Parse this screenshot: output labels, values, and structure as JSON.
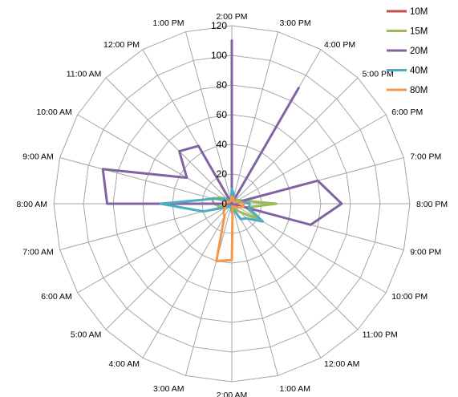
{
  "chart_data": {
    "type": "radar",
    "title": "",
    "categories": [
      "2:00 PM",
      "3:00 PM",
      "4:00 PM",
      "5:00 PM",
      "6:00 PM",
      "7:00 PM",
      "8:00 PM",
      "9:00 PM",
      "10:00 PM",
      "11:00 PM",
      "12:00 AM",
      "1:00 AM",
      "2:00 AM",
      "3:00 AM",
      "4:00 AM",
      "5:00 AM",
      "6:00 AM",
      "7:00 AM",
      "8:00 AM",
      "9:00 AM",
      "10:00 AM",
      "11:00 AM",
      "12:00 PM",
      "1:00 PM"
    ],
    "radial_axis": {
      "min": 0,
      "max": 120,
      "step": 20,
      "ticks": [
        "0",
        "20",
        "40",
        "60",
        "80",
        "100",
        "120"
      ]
    },
    "grid": true,
    "legend_position": "top-right",
    "series": [
      {
        "name": "10M",
        "color": "#c0504d",
        "values": [
          2,
          1,
          1,
          1,
          1,
          1,
          2,
          1,
          1,
          1,
          1,
          1,
          2,
          1,
          1,
          1,
          1,
          1,
          2,
          1,
          1,
          1,
          1,
          1
        ]
      },
      {
        "name": "15M",
        "color": "#9bbb59",
        "values": [
          5,
          2,
          2,
          3,
          5,
          8,
          30,
          10,
          22,
          8,
          4,
          2,
          3,
          2,
          1,
          2,
          3,
          8,
          12,
          14,
          8,
          5,
          3,
          2
        ]
      },
      {
        "name": "20M",
        "color": "#8064a2",
        "values": [
          110,
          0,
          90,
          0,
          0,
          60,
          74,
          55,
          0,
          0,
          0,
          0,
          0,
          0,
          0,
          0,
          0,
          0,
          84,
          90,
          35,
          50,
          45,
          0
        ]
      },
      {
        "name": "40M",
        "color": "#4bacc6",
        "values": [
          10,
          6,
          3,
          2,
          2,
          6,
          12,
          12,
          24,
          14,
          12,
          4,
          6,
          2,
          2,
          3,
          5,
          20,
          48,
          13,
          6,
          3,
          3,
          2
        ]
      },
      {
        "name": "80M",
        "color": "#f79646",
        "values": [
          5,
          4,
          2,
          2,
          2,
          5,
          8,
          8,
          5,
          3,
          2,
          2,
          38,
          40,
          10,
          8,
          5,
          5,
          5,
          3,
          2,
          2,
          2,
          2
        ]
      }
    ]
  }
}
